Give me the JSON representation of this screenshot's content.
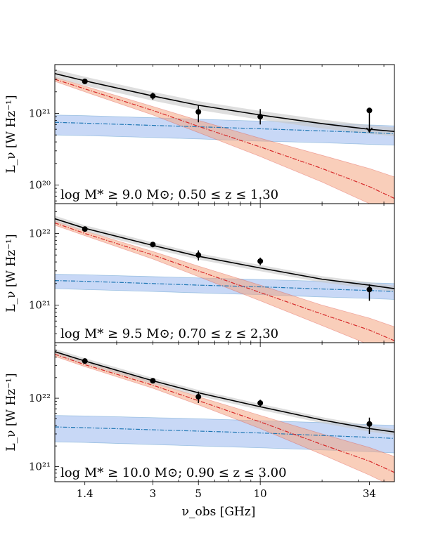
{
  "figure": {
    "x_label": "ν_obs [GHz]",
    "y_label": "L_ν [W Hz⁻¹]"
  },
  "chart_data": [
    {
      "type": "line",
      "annotation": "log M* ≥ 9.0 M⊙;  0.50 ≤ z ≤ 1.30",
      "xscale": "log",
      "yscale": "log",
      "xlim": [
        1.0,
        45
      ],
      "ylim": [
        5.5e+19,
        4.8e+21
      ],
      "yticks": [
        {
          "value": 1e+20,
          "label": "10²⁰"
        },
        {
          "value": 1e+21,
          "label": "10²¹"
        }
      ],
      "points": [
        {
          "x": 1.4,
          "y": 2.8e+21,
          "yerr_low": 2e+20,
          "yerr_high": 2e+20
        },
        {
          "x": 3,
          "y": 1.75e+21,
          "yerr_low": 2e+20,
          "yerr_high": 2e+20
        },
        {
          "x": 5,
          "y": 1.05e+21,
          "yerr_low": 3e+20,
          "yerr_high": 2.5e+20
        },
        {
          "x": 10,
          "y": 9e+20,
          "yerr_low": 2e+20,
          "yerr_high": 2.5e+20
        },
        {
          "x": 34,
          "y": 1.1e+21,
          "upper_limit": true
        }
      ],
      "total_model": {
        "x": [
          1.0,
          1.4,
          3,
          5,
          10,
          20,
          34,
          45
        ],
        "y": [
          3.6e+21,
          2.85e+21,
          1.75e+21,
          1.3e+21,
          9.5e+20,
          7.2e+20,
          6e+20,
          5.6e+20
        ],
        "band_frac": 0.14
      },
      "synchrotron": {
        "x": [
          1.0,
          1.4,
          3,
          5,
          10,
          20,
          34,
          45
        ],
        "y": [
          3e+21,
          2.2e+21,
          1.1e+21,
          6.6e+20,
          3.4e+20,
          1.7e+20,
          9.5e+19,
          6.5e+19
        ],
        "band_low": [
          2.8e+21,
          2e+21,
          9.5e+20,
          5.4e+20,
          2.5e+20,
          1.1e+20,
          5.5e+19,
          3.5e+19
        ],
        "band_high": [
          3.2e+21,
          2.4e+21,
          1.25e+21,
          8e+20,
          4.5e+20,
          2.6e+20,
          1.7e+20,
          1.3e+20
        ]
      },
      "free_free": {
        "x": [
          1.0,
          1.4,
          3,
          5,
          10,
          20,
          34,
          45
        ],
        "y": [
          7.5e+20,
          7.3e+20,
          6.8e+20,
          6.5e+20,
          6.1e+20,
          5.7e+20,
          5.4e+20,
          5.2e+20
        ],
        "band_low": [
          5e+20,
          4.9e+20,
          4.6e+20,
          4.4e+20,
          4.1e+20,
          3.9e+20,
          3.7e+20,
          3.6e+20
        ],
        "band_high": [
          9.5e+20,
          9.3e+20,
          8.7e+20,
          8.3e+20,
          7.8e+20,
          7.3e+20,
          6.9e+20,
          6.7e+20
        ]
      }
    },
    {
      "type": "line",
      "annotation": "log M* ≥ 9.5 M⊙;  0.70 ≤ z ≤ 2.30",
      "xscale": "log",
      "yscale": "log",
      "xlim": [
        1.0,
        45
      ],
      "ylim": [
        3e+20,
        2.6e+22
      ],
      "yticks": [
        {
          "value": 1e+21,
          "label": "10²¹"
        },
        {
          "value": 1e+22,
          "label": "10²²"
        }
      ],
      "points": [
        {
          "x": 1.4,
          "y": 1.15e+22,
          "yerr_low": 8e+20,
          "yerr_high": 8e+20
        },
        {
          "x": 3,
          "y": 7e+21,
          "yerr_low": 6e+20,
          "yerr_high": 6e+20
        },
        {
          "x": 5,
          "y": 5e+21,
          "yerr_low": 8e+20,
          "yerr_high": 8e+20
        },
        {
          "x": 10,
          "y": 4.1e+21,
          "yerr_low": 5e+20,
          "yerr_high": 5e+20
        },
        {
          "x": 34,
          "y": 1.65e+21,
          "yerr_low": 5e+20,
          "yerr_high": 3e+20
        }
      ],
      "total_model": {
        "x": [
          1.0,
          1.4,
          3,
          5,
          10,
          20,
          34,
          45
        ],
        "y": [
          1.6e+22,
          1.18e+22,
          6.8e+21,
          4.8e+21,
          3.3e+21,
          2.3e+21,
          1.9e+21,
          1.7e+21
        ],
        "band_frac": 0.1
      },
      "synchrotron": {
        "x": [
          1.0,
          1.4,
          3,
          5,
          10,
          20,
          34,
          45
        ],
        "y": [
          1.4e+22,
          1e+22,
          5e+21,
          3e+21,
          1.5e+21,
          7.5e+20,
          4.5e+20,
          3.2e+20
        ],
        "band_low": [
          1.3e+22,
          9.3e+21,
          4.4e+21,
          2.5e+21,
          1.15e+21,
          5.2e+20,
          2.8e+20,
          1.9e+20
        ],
        "band_high": [
          1.5e+22,
          1.08e+22,
          5.6e+21,
          3.5e+21,
          1.9e+21,
          1e+21,
          6.6e+20,
          5e+20
        ]
      },
      "free_free": {
        "x": [
          1.0,
          1.4,
          3,
          5,
          10,
          20,
          34,
          45
        ],
        "y": [
          2.2e+21,
          2.15e+21,
          2e+21,
          1.9e+21,
          1.8e+21,
          1.68e+21,
          1.6e+21,
          1.55e+21
        ],
        "band_low": [
          1.7e+21,
          1.65e+21,
          1.55e+21,
          1.48e+21,
          1.4e+21,
          1.3e+21,
          1.24e+21,
          1.2e+21
        ],
        "band_high": [
          2.7e+21,
          2.65e+21,
          2.5e+21,
          2.4e+21,
          2.28e+21,
          2.15e+21,
          2.05e+21,
          2e+21
        ]
      }
    },
    {
      "type": "line",
      "annotation": "log M* ≥ 10.0 M⊙;  0.90 ≤ z ≤ 3.00",
      "xscale": "log",
      "yscale": "log",
      "xlim": [
        1.0,
        45
      ],
      "ylim": [
        6e+20,
        6.5e+22
      ],
      "yticks": [
        {
          "value": 1e+21,
          "label": "10²¹"
        },
        {
          "value": 1e+22,
          "label": "10²²"
        }
      ],
      "points": [
        {
          "x": 1.4,
          "y": 3.5e+22,
          "yerr_low": 2.5e+21,
          "yerr_high": 2.5e+21
        },
        {
          "x": 3,
          "y": 1.8e+22,
          "yerr_low": 1.5e+21,
          "yerr_high": 1.5e+21
        },
        {
          "x": 5,
          "y": 1.05e+22,
          "yerr_low": 2e+21,
          "yerr_high": 2e+21
        },
        {
          "x": 10,
          "y": 8.5e+21,
          "yerr_low": 1e+21,
          "yerr_high": 1e+21
        },
        {
          "x": 34,
          "y": 4.2e+21,
          "yerr_low": 1.2e+21,
          "yerr_high": 1e+21
        }
      ],
      "total_model": {
        "x": [
          1.0,
          1.4,
          3,
          5,
          10,
          20,
          34,
          45
        ],
        "y": [
          4.8e+22,
          3.5e+22,
          1.8e+22,
          1.2e+22,
          7.5e+21,
          4.8e+21,
          3.6e+21,
          3.2e+21
        ],
        "band_frac": 0.1
      },
      "synchrotron": {
        "x": [
          1.0,
          1.4,
          3,
          5,
          10,
          20,
          34,
          45
        ],
        "y": [
          4.4e+22,
          3.1e+22,
          1.55e+22,
          9.2e+21,
          4.5e+21,
          2.1e+21,
          1.2e+21,
          8.2e+20
        ],
        "band_low": [
          4.1e+22,
          2.9e+22,
          1.4e+22,
          8e+21,
          3.6e+21,
          1.5e+21,
          7.5e+20,
          5e+20
        ],
        "band_high": [
          4.7e+22,
          3.35e+22,
          1.72e+22,
          1.05e+22,
          5.6e+21,
          3e+21,
          1.9e+21,
          1.4e+21
        ]
      },
      "free_free": {
        "x": [
          1.0,
          1.4,
          3,
          5,
          10,
          20,
          34,
          45
        ],
        "y": [
          3.8e+21,
          3.7e+21,
          3.45e+21,
          3.3e+21,
          3.1e+21,
          2.85e+21,
          2.68e+21,
          2.58e+21
        ],
        "band_low": [
          2.3e+21,
          2.25e+21,
          2.1e+21,
          2e+21,
          1.88e+21,
          1.75e+21,
          1.65e+21,
          1.58e+21
        ],
        "band_high": [
          5.6e+21,
          5.5e+21,
          5.2e+21,
          5e+21,
          4.7e+21,
          4.4e+21,
          4.1e+21,
          4e+21
        ]
      }
    }
  ],
  "x_ticks": [
    {
      "value": 1.4,
      "label": "1.4"
    },
    {
      "value": 3,
      "label": "3"
    },
    {
      "value": 5,
      "label": "5"
    },
    {
      "value": 10,
      "label": "10"
    },
    {
      "value": 34,
      "label": "34"
    }
  ],
  "colors": {
    "total": "#000000",
    "total_band": "#c8c8c8",
    "synchrotron": "#d62728",
    "synchrotron_band": "#f4a582",
    "free_free": "#1f77b4",
    "free_free_band": "#9ab8ee",
    "points": "#000000"
  }
}
